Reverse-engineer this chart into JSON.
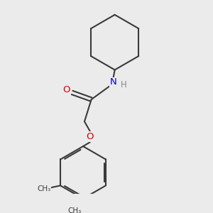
{
  "background_color": "#ebebeb",
  "bond_color": "#3a3a3a",
  "bond_width": 1.5,
  "O_color": "#cc0000",
  "N_color": "#0000cc",
  "H_color": "#888888",
  "figsize": [
    3.0,
    3.0
  ],
  "dpi": 100,
  "xlim": [
    0.3,
    2.7
  ],
  "ylim": [
    0.1,
    2.9
  ]
}
